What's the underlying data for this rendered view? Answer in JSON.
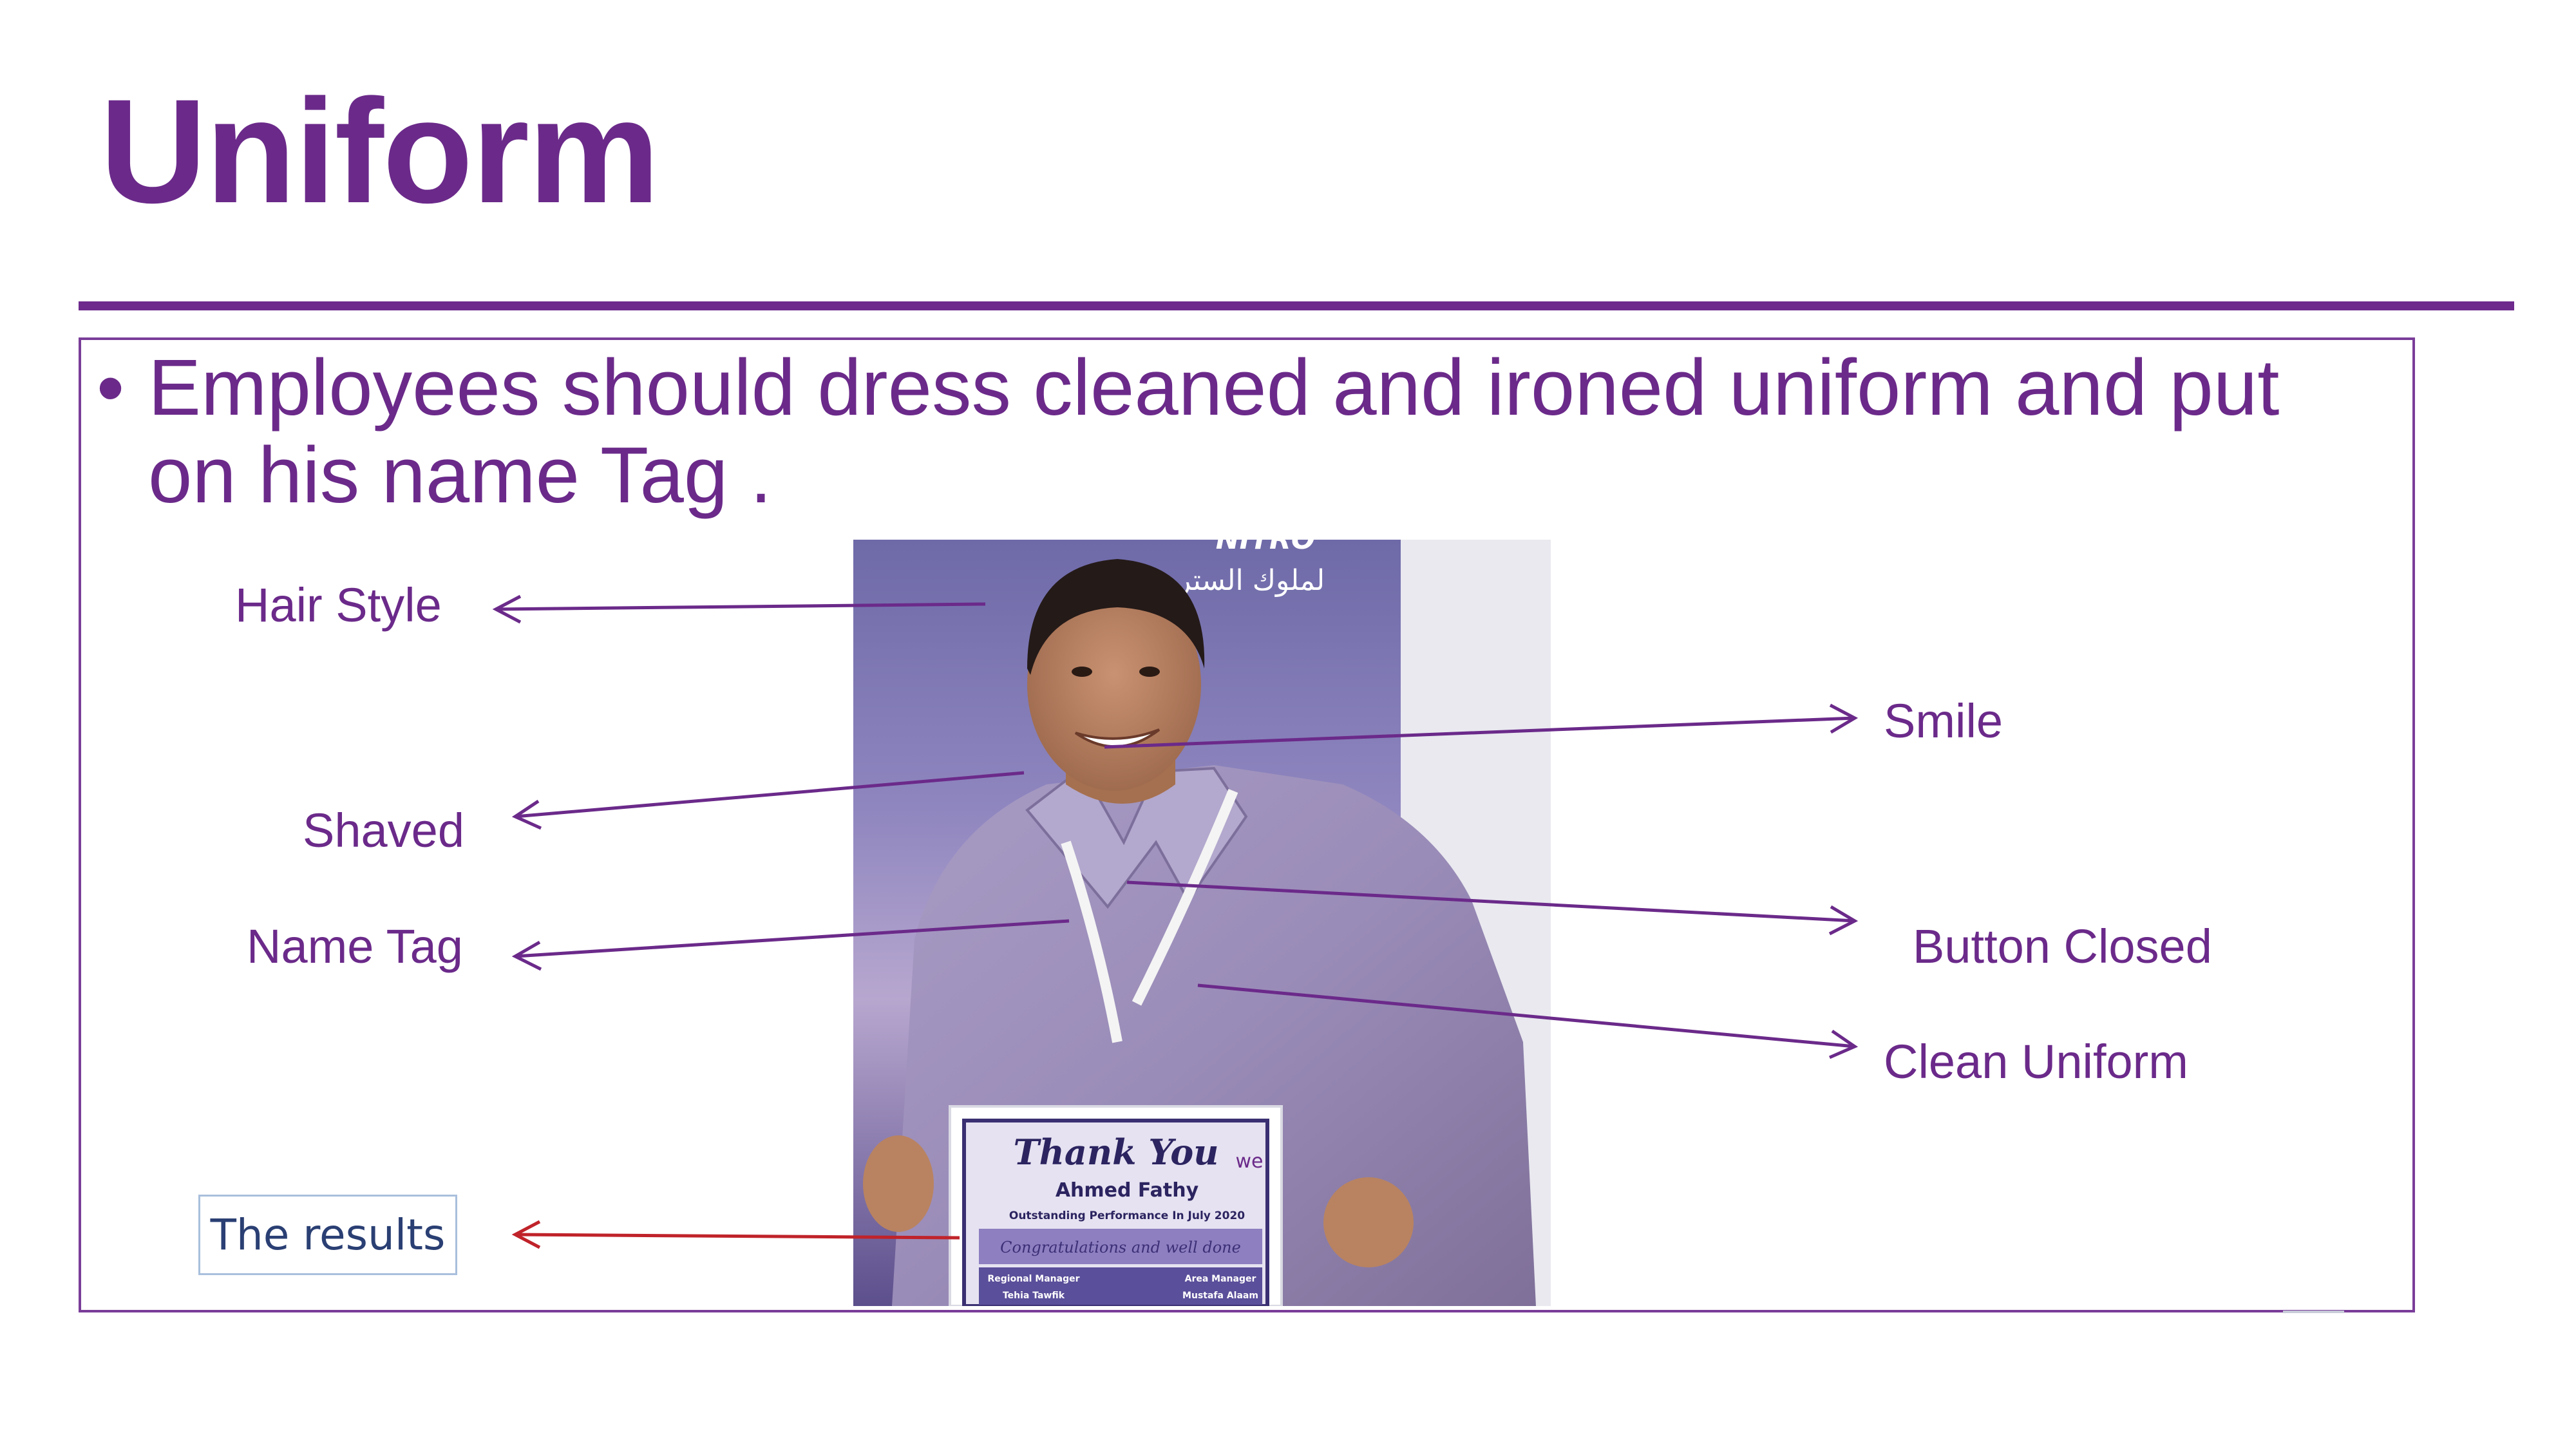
{
  "slide": {
    "title": "Uniform",
    "bullet_text": "Employees should dress cleaned and ironed uniform and put on his name Tag ."
  },
  "labels": {
    "hair_style": "Hair Style",
    "smile": "Smile",
    "shaved": "Shaved",
    "name_tag": "Name Tag",
    "button_closed": "Button Closed",
    "clean_uniform": "Clean Uniform",
    "results": "The results"
  },
  "photo": {
    "banner_text": "لملوك الستريت",
    "banner_brand": "NITRO",
    "certificate": {
      "heading": "Thank You",
      "name": "Ahmed Fathy",
      "subtitle": "Outstanding Performance In July 2020",
      "script_line": "Congratulations and well done",
      "left_role": "Regional Manager",
      "left_name": "Tehia Tawfik",
      "right_role": "Area Manager",
      "right_name": "Mustafa Alaam",
      "logo": "we"
    }
  },
  "colors": {
    "accent": "#6b2a8a",
    "rule": "#6e2a8c",
    "results_arrow": "#c0232a",
    "results_border": "#a9bfdc"
  }
}
